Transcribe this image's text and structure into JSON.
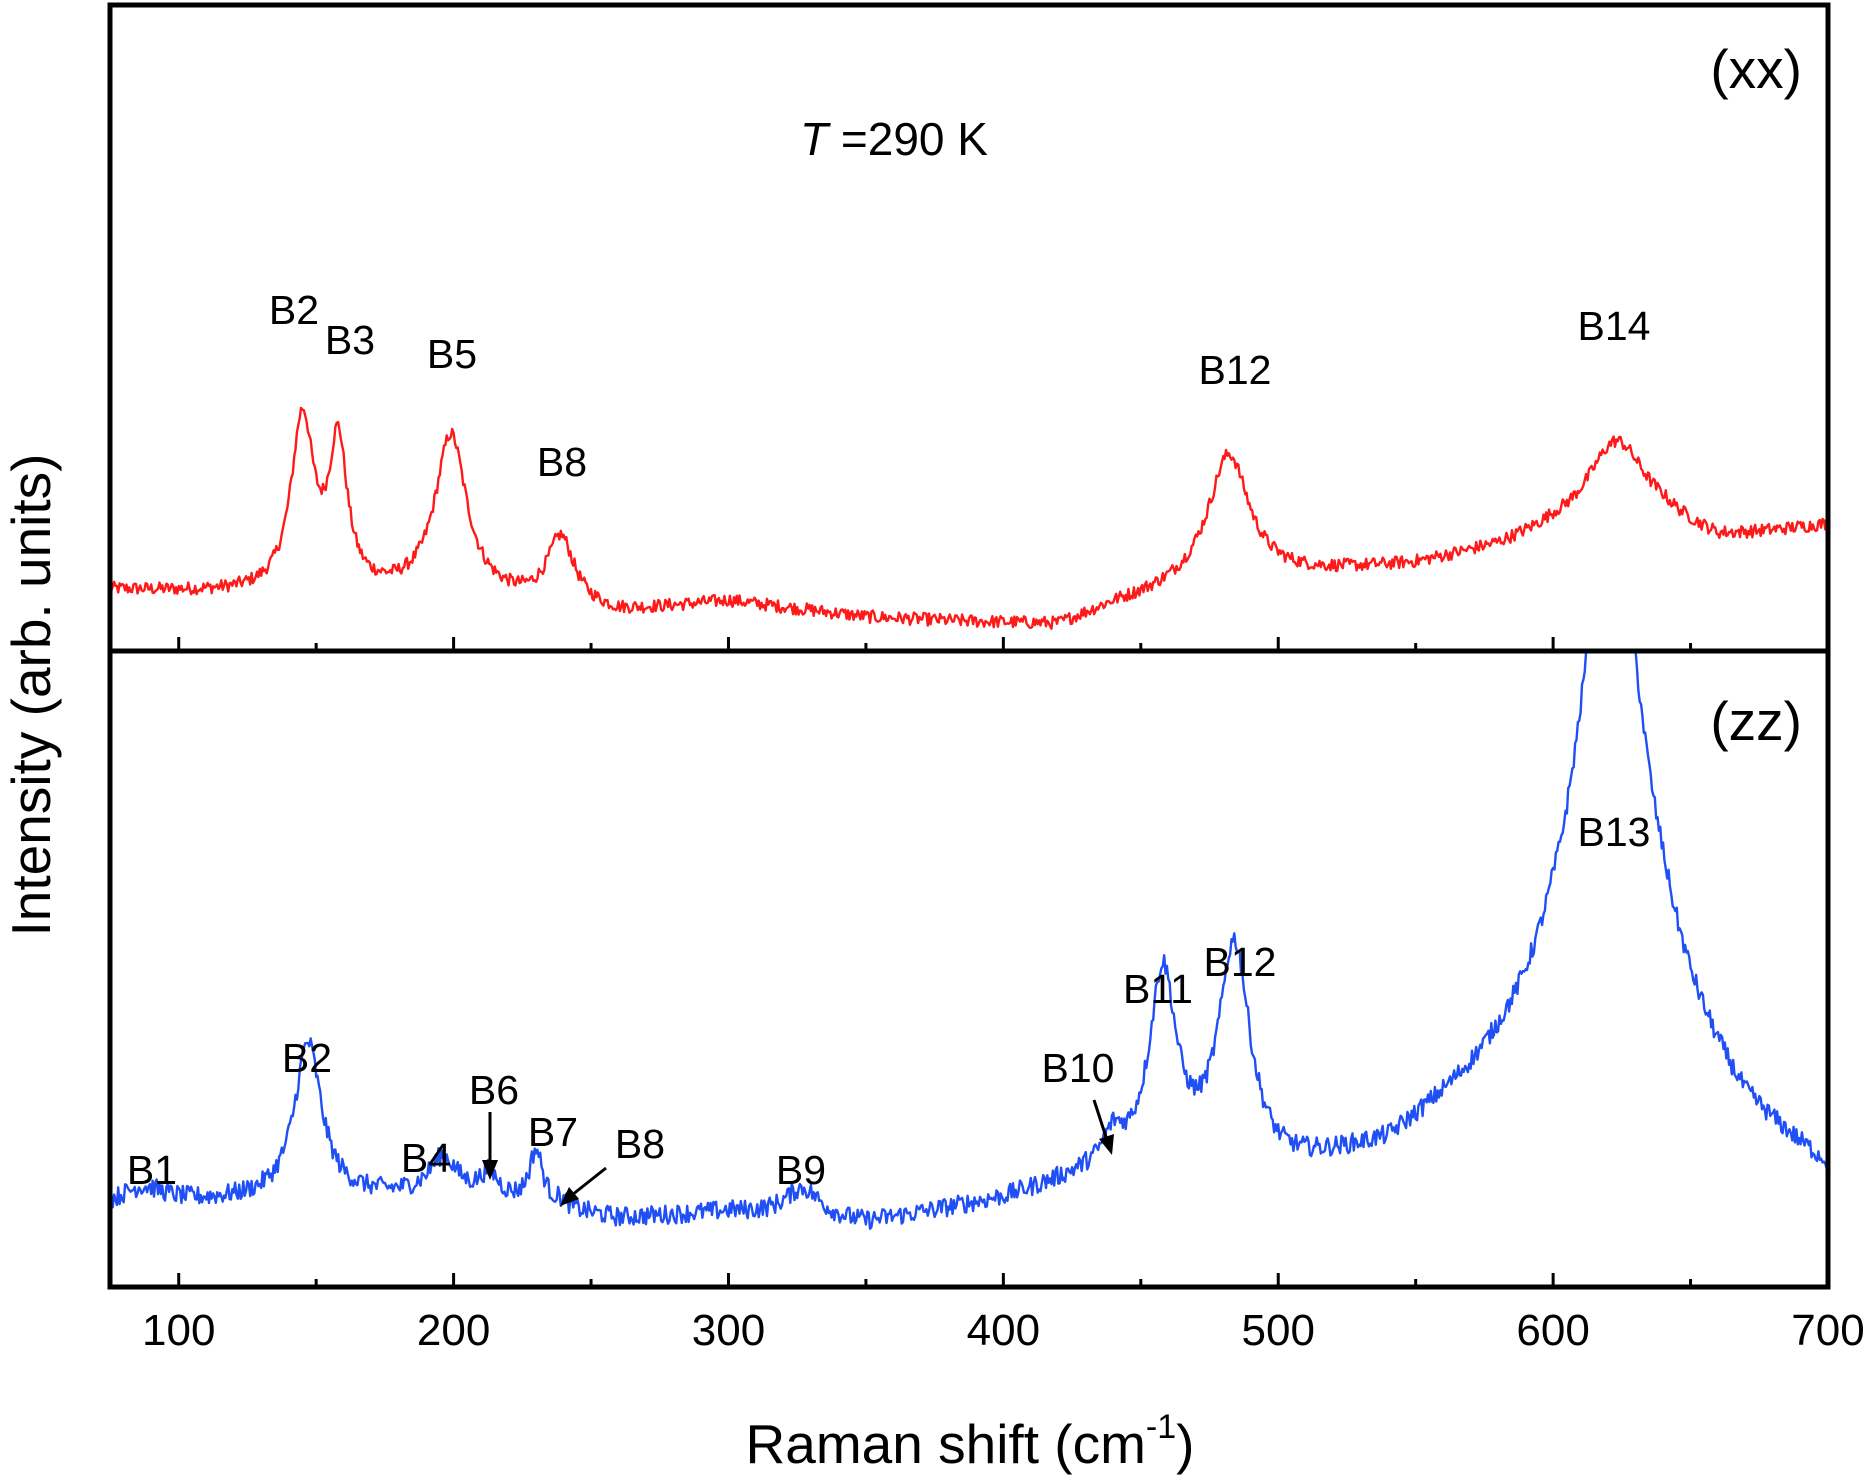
{
  "chart_data": {
    "type": "line",
    "xlabel": "Raman shift (cm",
    "xlabel_sup": "-1",
    "xlabel_close": ")",
    "ylabel": "Intensity (arb. units)",
    "xlim": [
      75,
      700
    ],
    "xticks": [
      "100",
      "200",
      "300",
      "400",
      "500",
      "600",
      "700"
    ],
    "annotation_T_italic": "T",
    "annotation_T_rest": " =290 K",
    "grid": false,
    "panels": [
      {
        "name": "xx",
        "label": "(xx)",
        "color": "#ff1a1a",
        "ylim": [
          0,
          100
        ],
        "baseline": [
          [
            75,
            10
          ],
          [
            120,
            9
          ],
          [
            200,
            8
          ],
          [
            260,
            4
          ],
          [
            300,
            7
          ],
          [
            350,
            3
          ],
          [
            380,
            2
          ],
          [
            420,
            1
          ],
          [
            440,
            6
          ],
          [
            470,
            11
          ],
          [
            500,
            13
          ],
          [
            550,
            16
          ],
          [
            580,
            20
          ],
          [
            600,
            24
          ],
          [
            640,
            26
          ],
          [
            660,
            22
          ],
          [
            700,
            26
          ]
        ],
        "peaks": [
          {
            "label": "B2",
            "x": 145,
            "height": 43,
            "width": 5
          },
          {
            "label": "B3",
            "x": 158,
            "height": 36,
            "width": 4
          },
          {
            "label": "B5",
            "x": 199,
            "height": 40,
            "width": 7
          },
          {
            "label": "B8",
            "x": 239,
            "height": 17,
            "width": 6
          },
          {
            "label": "B12",
            "x": 482,
            "height": 32,
            "width": 9
          },
          {
            "label": "B14",
            "x": 623,
            "height": 22,
            "width": 13
          }
        ]
      },
      {
        "name": "zz",
        "label": "(zz)",
        "color": "#1f4ff5",
        "ylim": [
          0,
          100
        ],
        "baseline": [
          [
            75,
            7
          ],
          [
            120,
            8
          ],
          [
            200,
            9
          ],
          [
            260,
            5
          ],
          [
            300,
            6
          ],
          [
            350,
            4
          ],
          [
            400,
            8
          ],
          [
            440,
            13
          ],
          [
            500,
            12
          ],
          [
            540,
            16
          ],
          [
            570,
            25
          ],
          [
            600,
            35
          ],
          [
            640,
            35
          ],
          [
            670,
            20
          ],
          [
            700,
            12
          ]
        ],
        "peaks": [
          {
            "label": "B1",
            "x": 87,
            "height": 3,
            "width": 10
          },
          {
            "label": "B2",
            "x": 147,
            "height": 26,
            "width": 6
          },
          {
            "label": "B4",
            "x": 196,
            "height": 6,
            "width": 6
          },
          {
            "label": "B6",
            "x": 213,
            "height": 4,
            "width": 4
          },
          {
            "label": "B7",
            "x": 230,
            "height": 9,
            "width": 3
          },
          {
            "label": "B8",
            "x": 239,
            "height": 1,
            "width": 3
          },
          {
            "label": "B9",
            "x": 327,
            "height": 5,
            "width": 8
          },
          {
            "label": "B10",
            "x": 440,
            "height": 4,
            "width": 4
          },
          {
            "label": "B11",
            "x": 458,
            "height": 32,
            "width": 6
          },
          {
            "label": "B12",
            "x": 484,
            "height": 37,
            "width": 7
          },
          {
            "label": "B13",
            "x": 621,
            "height": 90,
            "width": 14
          }
        ]
      }
    ]
  }
}
